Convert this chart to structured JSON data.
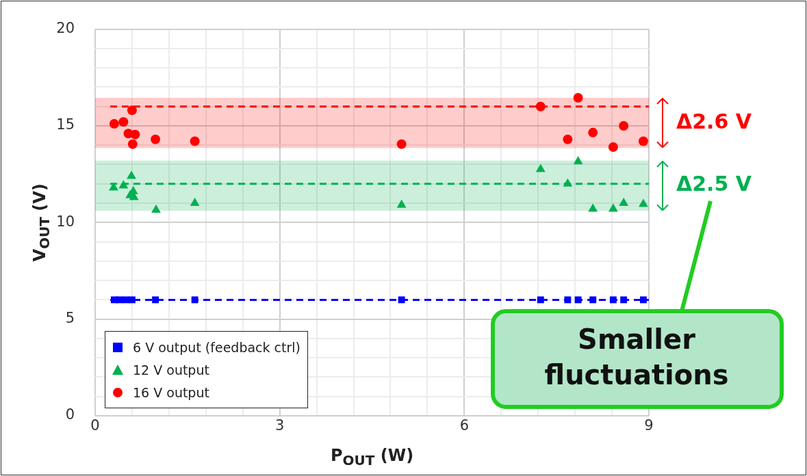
{
  "chart_data": {
    "type": "scatter",
    "xlabel": "P$_{OUT}$ (W)",
    "ylabel": "V$_{OUT}$ (V)",
    "xlim": [
      0,
      9
    ],
    "ylim": [
      0,
      20
    ],
    "xticks": [
      0,
      {
        "value": 0.6,
        "label": null
      },
      {
        "value": 1.2,
        "label": null
      },
      {
        "value": 1.8,
        "label": null
      },
      {
        "value": 2.4,
        "label": null
      },
      3,
      {
        "value": 3.6,
        "label": null
      },
      {
        "value": 4.2,
        "label": null
      },
      {
        "value": 4.8,
        "label": null
      },
      {
        "value": 5.4,
        "label": null
      },
      6,
      {
        "value": 6.6,
        "label": null
      },
      {
        "value": 7.2,
        "label": null
      },
      {
        "value": 7.8,
        "label": null
      },
      {
        "value": 8.4,
        "label": null
      },
      9
    ],
    "yticks": [
      0,
      {
        "value": 1,
        "label": null
      },
      {
        "value": 2,
        "label": null
      },
      {
        "value": 3,
        "label": null
      },
      {
        "value": 4,
        "label": null
      },
      5,
      {
        "value": 6,
        "label": null
      },
      {
        "value": 7,
        "label": null
      },
      {
        "value": 8,
        "label": null
      },
      {
        "value": 9,
        "label": null
      },
      10,
      {
        "value": 11,
        "label": null
      },
      {
        "value": 12,
        "label": null
      },
      {
        "value": 13,
        "label": null
      },
      {
        "value": 14,
        "label": null
      },
      15,
      {
        "value": 16,
        "label": null
      },
      {
        "value": 17,
        "label": null
      },
      {
        "value": 18,
        "label": null
      },
      {
        "value": 19,
        "label": null
      },
      20
    ],
    "grid": true,
    "legend": "bottom left",
    "series": [
      {
        "name": "6 V output (feedback ctrl)",
        "color": "#0000ff",
        "marker": "square",
        "x": [
          0.31,
          0.4,
          0.5,
          0.6,
          0.98,
          1.62,
          4.98,
          7.24,
          7.68,
          7.85,
          8.09,
          8.42,
          8.59,
          8.91
        ],
        "values": [
          6,
          6,
          6,
          6,
          6,
          6,
          6,
          6,
          6,
          6,
          6,
          6,
          6,
          6
        ]
      },
      {
        "name": "12 V output",
        "color": "#00b050",
        "marker": "triangle",
        "x": [
          0.3,
          0.46,
          0.59,
          0.57,
          0.62,
          0.63,
          0.99,
          1.62,
          4.98,
          7.24,
          7.68,
          7.85,
          8.09,
          8.42,
          8.59,
          8.91
        ],
        "values": [
          11.8,
          11.9,
          12.4,
          11.4,
          11.6,
          11.3,
          10.65,
          11.0,
          10.9,
          12.75,
          12.0,
          13.15,
          10.7,
          10.7,
          11.0,
          10.95
        ]
      },
      {
        "name": "16 V output",
        "color": "#ff0000",
        "marker": "circle",
        "x": [
          0.31,
          0.46,
          0.54,
          0.6,
          0.65,
          0.61,
          0.98,
          1.62,
          4.98,
          7.24,
          7.68,
          7.85,
          8.09,
          8.42,
          8.59,
          8.91
        ],
        "values": [
          15.1,
          15.2,
          14.6,
          15.8,
          14.55,
          14.05,
          14.3,
          14.2,
          14.05,
          16.0,
          14.3,
          16.45,
          14.65,
          13.9,
          15.0,
          14.2
        ]
      }
    ],
    "ref_lines": [
      {
        "axis": "y",
        "value": 16,
        "color": "#ff0000",
        "line_style": "dashed"
      },
      {
        "axis": "y",
        "value": 12,
        "color": "#00b050",
        "line_style": "dashed"
      },
      {
        "axis": "y",
        "value": 6,
        "color": "#0000ff",
        "line_style": "dashed"
      }
    ],
    "bands": [
      {
        "axis": "y",
        "from": 13.85,
        "to": 16.45,
        "label": "Δ2.6 V",
        "color": "#ff0000"
      },
      {
        "axis": "y",
        "from": 10.6,
        "to": 13.2,
        "label": "Δ2.5 V",
        "color": "#00b050"
      }
    ],
    "annotations": [
      "Smaller fluctuations"
    ]
  }
}
